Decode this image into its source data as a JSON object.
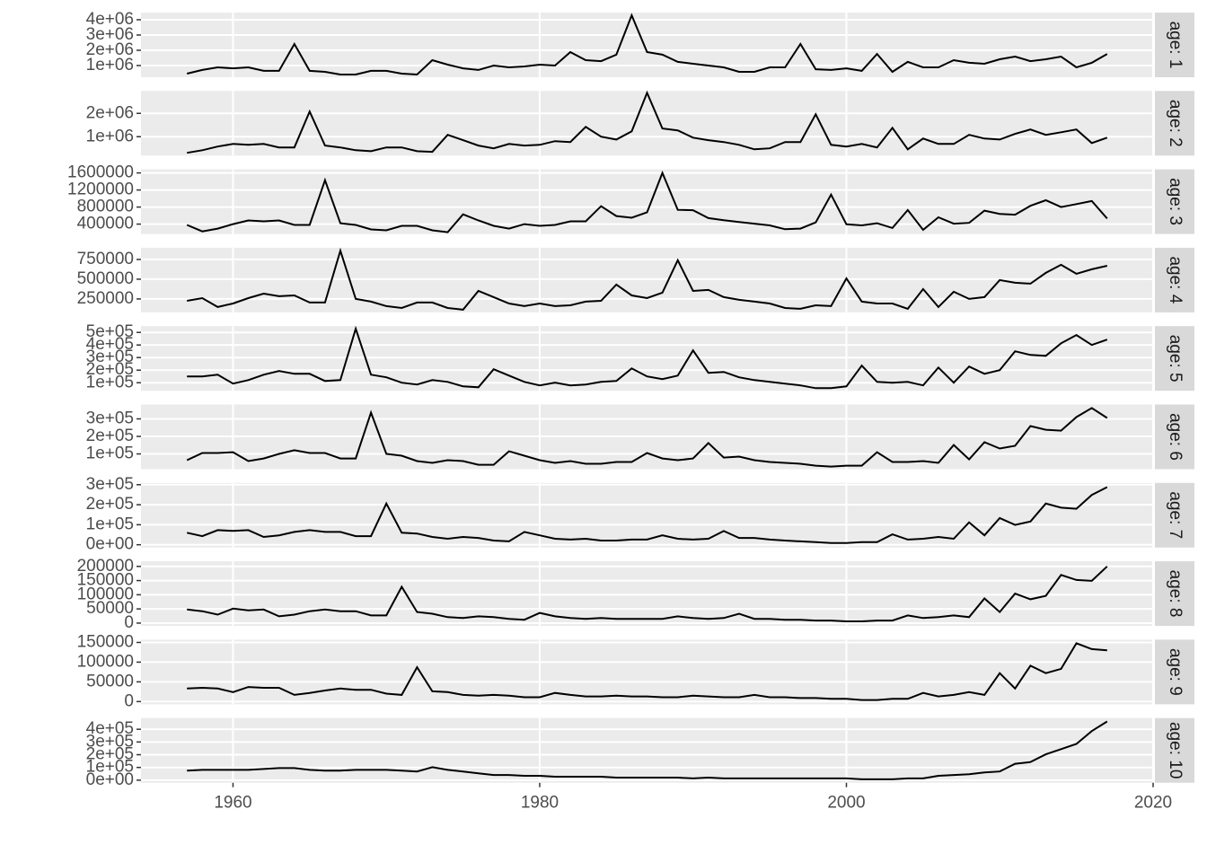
{
  "chart_data": {
    "type": "line",
    "grid": true,
    "x": [
      1957,
      1958,
      1959,
      1960,
      1961,
      1962,
      1963,
      1964,
      1965,
      1966,
      1967,
      1968,
      1969,
      1970,
      1971,
      1972,
      1973,
      1974,
      1975,
      1976,
      1977,
      1978,
      1979,
      1980,
      1981,
      1982,
      1983,
      1984,
      1985,
      1986,
      1987,
      1988,
      1989,
      1990,
      1991,
      1992,
      1993,
      1994,
      1995,
      1996,
      1997,
      1998,
      1999,
      2000,
      2001,
      2002,
      2003,
      2004,
      2005,
      2006,
      2007,
      2008,
      2009,
      2010,
      2011,
      2012,
      2013,
      2014,
      2015,
      2016,
      2017
    ],
    "xlim": [
      1954,
      2020
    ],
    "xticks": [
      1960,
      1980,
      2000,
      2020
    ],
    "series": [
      {
        "name": "age: 1",
        "color": "#000000",
        "ylim": [
          235000,
          4470000
        ],
        "yticks": [
          {
            "value": 1000000,
            "label": "1e+06"
          },
          {
            "value": 2000000,
            "label": "2e+06"
          },
          {
            "value": 3000000,
            "label": "3e+06"
          },
          {
            "value": 4000000,
            "label": "4e+06"
          }
        ],
        "values": [
          470000,
          710000,
          880000,
          820000,
          880000,
          650000,
          650000,
          2410000,
          650000,
          590000,
          410000,
          410000,
          650000,
          650000,
          470000,
          410000,
          1350000,
          1060000,
          820000,
          710000,
          1000000,
          880000,
          940000,
          1060000,
          1000000,
          1880000,
          1350000,
          1290000,
          1710000,
          4290000,
          1880000,
          1710000,
          1240000,
          1120000,
          1000000,
          880000,
          590000,
          590000,
          880000,
          880000,
          2410000,
          760000,
          710000,
          820000,
          650000,
          1760000,
          590000,
          1240000,
          880000,
          880000,
          1350000,
          1180000,
          1120000,
          1410000,
          1590000,
          1290000,
          1410000,
          1590000,
          880000,
          1180000,
          1760000
        ]
      },
      {
        "name": "age: 2",
        "color": "#000000",
        "ylim": [
          190000,
          2960000
        ],
        "yticks": [
          {
            "value": 1000000,
            "label": "1e+06"
          },
          {
            "value": 2000000,
            "label": "2e+06"
          }
        ],
        "values": [
          310000,
          420000,
          580000,
          690000,
          650000,
          690000,
          540000,
          540000,
          2080000,
          620000,
          540000,
          420000,
          380000,
          540000,
          540000,
          380000,
          350000,
          1080000,
          850000,
          620000,
          500000,
          690000,
          620000,
          650000,
          810000,
          770000,
          1420000,
          1000000,
          880000,
          1230000,
          2880000,
          1350000,
          1270000,
          960000,
          850000,
          770000,
          650000,
          460000,
          500000,
          770000,
          770000,
          1960000,
          650000,
          580000,
          690000,
          540000,
          1380000,
          460000,
          920000,
          690000,
          690000,
          1080000,
          920000,
          880000,
          1120000,
          1310000,
          1080000,
          1190000,
          1310000,
          730000,
          960000
        ]
      },
      {
        "name": "age: 3",
        "color": "#000000",
        "ylim": [
          168000,
          1684000
        ],
        "yticks": [
          400000,
          800000,
          1200000,
          1600000
        ],
        "values": [
          380000,
          230000,
          295000,
          400000,
          485000,
          465000,
          485000,
          380000,
          380000,
          1430000,
          420000,
          380000,
          275000,
          255000,
          360000,
          360000,
          255000,
          210000,
          630000,
          485000,
          360000,
          295000,
          400000,
          360000,
          380000,
          465000,
          465000,
          820000,
          590000,
          550000,
          675000,
          1600000,
          735000,
          725000,
          540000,
          490000,
          450000,
          410000,
          370000,
          280000,
          295000,
          440000,
          1090000,
          395000,
          370000,
          420000,
          310000,
          730000,
          265000,
          560000,
          410000,
          430000,
          715000,
          640000,
          620000,
          830000,
          960000,
          800000,
          870000,
          940000,
          530000
        ]
      },
      {
        "name": "age: 4",
        "color": "#000000",
        "ylim": [
          80000,
          898000
        ],
        "yticks": [
          250000,
          500000,
          750000
        ],
        "values": [
          227000,
          261000,
          148000,
          193000,
          261000,
          318000,
          284000,
          295000,
          205000,
          205000,
          860000,
          250000,
          216000,
          159000,
          136000,
          205000,
          205000,
          136000,
          114000,
          352000,
          273000,
          193000,
          159000,
          193000,
          159000,
          170000,
          216000,
          227000,
          432000,
          295000,
          261000,
          330000,
          740000,
          352000,
          364000,
          273000,
          239000,
          216000,
          193000,
          136000,
          125000,
          170000,
          159000,
          510000,
          216000,
          193000,
          193000,
          125000,
          375000,
          148000,
          341000,
          250000,
          273000,
          489000,
          455000,
          443000,
          580000,
          682000,
          568000,
          625000,
          670000
        ]
      },
      {
        "name": "age: 5",
        "color": "#000000",
        "ylim": [
          36000,
          550000
        ],
        "yticks": [
          {
            "value": 100000,
            "label": "1e+05"
          },
          {
            "value": 200000,
            "label": "2e+05"
          },
          {
            "value": 300000,
            "label": "3e+05"
          },
          {
            "value": 400000,
            "label": "4e+05"
          },
          {
            "value": 500000,
            "label": "5e+05"
          }
        ],
        "values": [
          150000,
          150000,
          164000,
          93000,
          121000,
          164000,
          193000,
          171000,
          171000,
          114000,
          121000,
          529000,
          164000,
          143000,
          100000,
          86000,
          121000,
          107000,
          71000,
          64000,
          207000,
          157000,
          107000,
          79000,
          100000,
          79000,
          86000,
          107000,
          114000,
          214000,
          150000,
          129000,
          157000,
          357000,
          179000,
          186000,
          143000,
          121000,
          107000,
          93000,
          79000,
          57000,
          57000,
          71000,
          236000,
          107000,
          100000,
          107000,
          79000,
          221000,
          100000,
          229000,
          171000,
          200000,
          350000,
          321000,
          314000,
          414000,
          479000,
          400000,
          443000
        ]
      },
      {
        "name": "age: 6",
        "color": "#000000",
        "ylim": [
          13000,
          382000
        ],
        "yticks": [
          {
            "value": 100000,
            "label": "1e+05"
          },
          {
            "value": 200000,
            "label": "2e+05"
          },
          {
            "value": 300000,
            "label": "3e+05"
          }
        ],
        "values": [
          64000,
          105000,
          105000,
          110000,
          59000,
          74000,
          100000,
          121000,
          105000,
          105000,
          74000,
          74000,
          336000,
          100000,
          90000,
          59000,
          49000,
          64000,
          59000,
          38000,
          38000,
          115000,
          90000,
          64000,
          49000,
          59000,
          44000,
          44000,
          54000,
          54000,
          105000,
          74000,
          64000,
          74000,
          162000,
          79000,
          85000,
          64000,
          54000,
          49000,
          44000,
          33000,
          28000,
          33000,
          33000,
          110000,
          54000,
          54000,
          59000,
          49000,
          151000,
          69000,
          167000,
          131000,
          146000,
          259000,
          238000,
          233000,
          310000,
          362000,
          305000
        ]
      },
      {
        "name": "age: 7",
        "color": "#000000",
        "ylim": [
          -14000,
          309000
        ],
        "yticks": [
          {
            "value": 0,
            "label": "0e+00"
          },
          {
            "value": 100000,
            "label": "1e+05"
          },
          {
            "value": 200000,
            "label": "2e+05"
          },
          {
            "value": 300000,
            "label": "3e+05"
          }
        ],
        "values": [
          60000,
          43000,
          73000,
          69000,
          73000,
          39000,
          47000,
          64000,
          73000,
          64000,
          64000,
          43000,
          43000,
          206000,
          60000,
          56000,
          39000,
          30000,
          39000,
          34000,
          21000,
          17000,
          64000,
          47000,
          30000,
          26000,
          30000,
          21000,
          21000,
          26000,
          26000,
          47000,
          30000,
          26000,
          30000,
          69000,
          34000,
          34000,
          26000,
          21000,
          17000,
          13000,
          9000,
          9000,
          13000,
          13000,
          52000,
          26000,
          30000,
          39000,
          30000,
          112000,
          47000,
          133000,
          99000,
          116000,
          206000,
          185000,
          180000,
          249000,
          288000
        ]
      },
      {
        "name": "age: 8",
        "color": "#000000",
        "ylim": [
          -10000,
          218000
        ],
        "yticks": [
          0,
          50000,
          100000,
          150000,
          200000
        ],
        "values": [
          48000,
          42000,
          30000,
          51000,
          45000,
          48000,
          24000,
          30000,
          42000,
          48000,
          42000,
          42000,
          27000,
          27000,
          128000,
          39000,
          33000,
          21000,
          18000,
          24000,
          21000,
          15000,
          12000,
          36000,
          24000,
          18000,
          15000,
          18000,
          15000,
          15000,
          15000,
          15000,
          24000,
          18000,
          15000,
          18000,
          33000,
          15000,
          15000,
          12000,
          12000,
          9000,
          9000,
          6000,
          6000,
          9000,
          9000,
          27000,
          18000,
          21000,
          27000,
          21000,
          87000,
          39000,
          104000,
          84000,
          96000,
          170000,
          152000,
          149000,
          200000
        ]
      },
      {
        "name": "age: 9",
        "color": "#000000",
        "ylim": [
          -7000,
          157000
        ],
        "yticks": [
          0,
          50000,
          100000,
          150000
        ],
        "values": [
          33000,
          35000,
          33000,
          24000,
          37000,
          35000,
          35000,
          17000,
          22000,
          28000,
          33000,
          30000,
          30000,
          20000,
          17000,
          87000,
          26000,
          24000,
          17000,
          15000,
          17000,
          15000,
          11000,
          11000,
          22000,
          17000,
          13000,
          13000,
          15000,
          13000,
          13000,
          11000,
          11000,
          15000,
          13000,
          11000,
          11000,
          17000,
          11000,
          11000,
          9000,
          9000,
          7000,
          7000,
          4000,
          4000,
          7000,
          7000,
          22000,
          13000,
          17000,
          24000,
          17000,
          72000,
          33000,
          91000,
          72000,
          83000,
          148000,
          133000,
          130000
        ]
      },
      {
        "name": "age: 10",
        "color": "#000000",
        "ylim": [
          -20000,
          488000
        ],
        "yticks": [
          {
            "value": 0,
            "label": "0e+00"
          },
          {
            "value": 100000,
            "label": "1e+05"
          },
          {
            "value": 200000,
            "label": "2e+05"
          },
          {
            "value": 300000,
            "label": "3e+05"
          },
          {
            "value": 400000,
            "label": "4e+05"
          }
        ],
        "values": [
          75000,
          81000,
          81000,
          81000,
          81000,
          88000,
          95000,
          95000,
          81000,
          75000,
          75000,
          81000,
          81000,
          81000,
          75000,
          68000,
          102000,
          81000,
          68000,
          54000,
          41000,
          41000,
          34000,
          34000,
          27000,
          27000,
          27000,
          27000,
          20000,
          20000,
          20000,
          20000,
          20000,
          14000,
          20000,
          14000,
          14000,
          14000,
          14000,
          14000,
          14000,
          14000,
          14000,
          14000,
          7000,
          7000,
          7000,
          14000,
          14000,
          34000,
          41000,
          47000,
          61000,
          68000,
          129000,
          142000,
          203000,
          244000,
          285000,
          386000,
          461000
        ]
      }
    ]
  }
}
